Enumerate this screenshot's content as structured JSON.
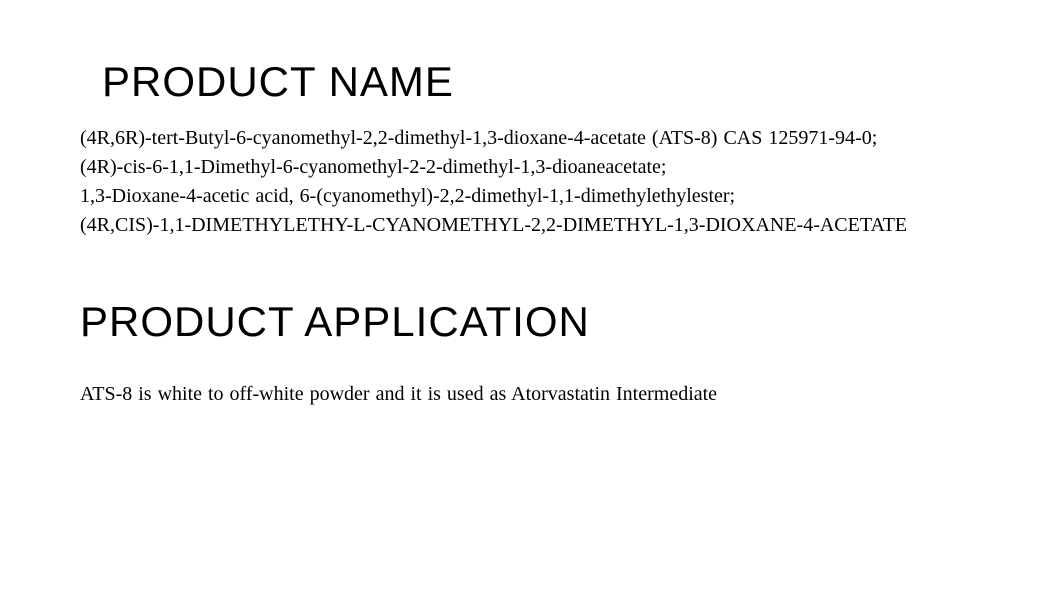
{
  "document": {
    "background_color": "#ffffff",
    "text_color": "#000000",
    "heading_font": "Helvetica Neue Light / thin sans-serif",
    "body_font": "Times New Roman (serif)",
    "heading_fontsize_pt": 32,
    "body_fontsize_pt": 15
  },
  "sections": {
    "product_name": {
      "heading": "PRODUCT NAME",
      "lines": [
        "(4R,6R)-tert-Butyl-6-cyanomethyl-2,2-dimethyl-1,3-dioxane-4-acetate (ATS-8) CAS 125971-94-0;",
        "(4R)-cis-6-1,1-Dimethyl-6-cyanomethyl-2-2-dimethyl-1,3-dioaneacetate;",
        "1,3-Dioxane-4-acetic acid, 6-(cyanomethyl)-2,2-dimethyl-1,1-dimethylethylester;",
        "(4R,CIS)-1,1-DIMETHYLETHY-L-CYANOMETHYL-2,2-DIMETHYL-1,3-DIOXANE-4-ACETATE"
      ]
    },
    "product_application": {
      "heading": "PRODUCT APPLICATION",
      "body": "ATS-8 is white to off-white powder and it is used as Atorvastatin Intermediate"
    }
  }
}
